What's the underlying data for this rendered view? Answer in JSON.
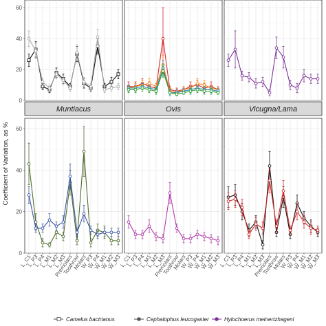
{
  "figure": {
    "ylabel": "Coefficient of Variation, as %",
    "ylim": [
      0,
      65
    ],
    "yticks": [
      0,
      20,
      40,
      60
    ],
    "variables": [
      "LC1",
      "LP3",
      "LP4",
      "LM1",
      "LM2",
      "LM3",
      "Premolars",
      "Toothrow",
      "Molars",
      "WP3",
      "WP4",
      "WM1",
      "WM2",
      "WM3"
    ],
    "x_tick_labels": [
      "L_C1",
      "L_P3",
      "L_P4",
      "L_M1",
      "L_M2",
      "L_M3",
      "Premolars",
      "Toothrow",
      "Molars",
      "W_P3",
      "W_P4",
      "W_M1",
      "W_M2",
      "W_M3"
    ]
  },
  "legend": {
    "items": [
      {
        "label": "Camelus bactrianus",
        "color": "#555555",
        "marker": "square"
      },
      {
        "label": "Cephalophus leucogaster",
        "color": "#555555",
        "marker": "circle"
      },
      {
        "label": "Hylochoerus meinertzhageni",
        "color": "#7b3294",
        "marker": "circle"
      }
    ]
  },
  "chart_data": [
    {
      "type": "line",
      "panel": 1,
      "title": "",
      "series": [
        {
          "name": "Camelus bactrianus",
          "color": "#111111",
          "marker": "square",
          "x": [
            "LC1",
            "LP3",
            "LP4",
            "LM1",
            "LM2",
            "LM3",
            "Premolars",
            "Toothrow",
            "Molars",
            "WP3",
            "WP4",
            "WM1",
            "WM2",
            "WM3"
          ],
          "values": [
            26,
            33,
            9,
            7,
            18,
            14,
            9,
            30,
            11,
            8,
            35,
            9,
            12,
            17
          ],
          "err": [
            4,
            5,
            2,
            2,
            3,
            3,
            2,
            5,
            3,
            2,
            5,
            2,
            3,
            3
          ]
        },
        {
          "color": "#aaaaaa",
          "marker": "circle",
          "x": [
            "LC1",
            "LP3",
            "LP4",
            "LM1",
            "LM2",
            "LM3",
            "Premolars",
            "Toothrow",
            "Molars",
            "WP3",
            "WP4",
            "WM1",
            "WM2",
            "WM3"
          ],
          "values": [
            40,
            32,
            12,
            8,
            17,
            13,
            8,
            31,
            12,
            9,
            41,
            7,
            8,
            9
          ],
          "err": [
            5,
            5,
            2,
            2,
            3,
            3,
            2,
            5,
            3,
            2,
            5,
            2,
            2,
            2
          ]
        }
      ]
    },
    {
      "type": "line",
      "panel": 2,
      "title": "",
      "series": [
        {
          "color": "#d62728",
          "marker": "circle",
          "x": [
            "LC1",
            "LP3",
            "LP4",
            "LM1",
            "LM2",
            "LM3",
            "Premolars",
            "Toothrow",
            "Molars",
            "WP3",
            "WP4",
            "WM1",
            "WM2",
            "WM3"
          ],
          "values": [
            9,
            9,
            11,
            9,
            8,
            40,
            7,
            6,
            7,
            9,
            10,
            8,
            9,
            7
          ],
          "err": [
            3,
            3,
            3,
            3,
            3,
            20,
            2,
            2,
            2,
            3,
            3,
            3,
            3,
            2
          ]
        },
        {
          "color": "#ff7f0e",
          "marker": "circle",
          "x": [
            "LC1",
            "LP3",
            "LP4",
            "LM1",
            "LM2",
            "LM3",
            "Premolars",
            "Toothrow",
            "Molars",
            "WP3",
            "WP4",
            "WM1",
            "WM2",
            "WM3"
          ],
          "values": [
            8,
            9,
            10,
            11,
            9,
            23,
            6,
            5,
            7,
            8,
            11,
            10,
            8,
            7
          ],
          "err": [
            2,
            2,
            3,
            3,
            2,
            6,
            2,
            2,
            2,
            2,
            3,
            3,
            2,
            2
          ]
        },
        {
          "color": "#2c7fb8",
          "marker": "circle",
          "x": [
            "LC1",
            "LP3",
            "LP4",
            "LM1",
            "LM2",
            "LM3",
            "Premolars",
            "Toothrow",
            "Molars",
            "WP3",
            "WP4",
            "WM1",
            "WM2",
            "WM3"
          ],
          "values": [
            8,
            8,
            9,
            8,
            7,
            21,
            5,
            5,
            6,
            7,
            8,
            7,
            7,
            6
          ],
          "err": [
            2,
            2,
            2,
            2,
            2,
            5,
            2,
            2,
            2,
            2,
            2,
            2,
            2,
            2
          ]
        },
        {
          "color": "#2ca02c",
          "marker": "circle",
          "x": [
            "LC1",
            "LP3",
            "LP4",
            "LM1",
            "LM2",
            "LM3",
            "Premolars",
            "Toothrow",
            "Molars",
            "WP3",
            "WP4",
            "WM1",
            "WM2",
            "WM3"
          ],
          "values": [
            7,
            7,
            8,
            7,
            6,
            19,
            5,
            4,
            5,
            6,
            7,
            6,
            6,
            5
          ],
          "err": [
            2,
            2,
            2,
            2,
            2,
            4,
            1,
            1,
            1,
            2,
            2,
            2,
            2,
            1
          ]
        }
      ]
    },
    {
      "type": "line",
      "panel": 3,
      "title": "",
      "series": [
        {
          "name": "Hylochoerus meinertzhageni",
          "color": "#7b3294",
          "marker": "circle",
          "x": [
            "LC1",
            "LP3",
            "LP4",
            "LM1",
            "LM2",
            "LM3",
            "Premolars",
            "Toothrow",
            "Molars",
            "WP3",
            "WP4",
            "WM1",
            "WM2",
            "WM3"
          ],
          "values": [
            26,
            33,
            16,
            15,
            11,
            12,
            5,
            34,
            28,
            10,
            8,
            16,
            14,
            14
          ],
          "err": [
            4,
            12,
            3,
            3,
            3,
            3,
            2,
            7,
            7,
            3,
            3,
            4,
            3,
            3
          ]
        }
      ]
    },
    {
      "type": "line",
      "panel": 4,
      "title": "Muntiacus",
      "series": [
        {
          "color": "#4f6b2a",
          "marker": "circle",
          "x": [
            "LC1",
            "LP3",
            "LP4",
            "LM1",
            "LM2",
            "LM3",
            "Premolars",
            "Toothrow",
            "Molars",
            "WP3",
            "WP4",
            "WM1",
            "WM2",
            "WM3"
          ],
          "values": [
            43,
            15,
            5,
            4,
            10,
            8,
            34,
            6,
            49,
            5,
            11,
            10,
            6,
            6
          ],
          "err": [
            10,
            4,
            2,
            1,
            3,
            2,
            6,
            2,
            12,
            2,
            3,
            3,
            2,
            2
          ]
        },
        {
          "color": "#3a55a0",
          "marker": "circle",
          "x": [
            "LC1",
            "LP3",
            "LP4",
            "LM1",
            "LM2",
            "LM3",
            "Premolars",
            "Toothrow",
            "Molars",
            "WP3",
            "WP4",
            "WM1",
            "WM2",
            "WM3"
          ],
          "values": [
            28,
            12,
            12,
            16,
            13,
            15,
            37,
            10,
            19,
            11,
            9,
            10,
            10,
            10
          ],
          "err": [
            4,
            2,
            2,
            3,
            2,
            3,
            6,
            2,
            4,
            2,
            2,
            2,
            2,
            2
          ]
        }
      ]
    },
    {
      "type": "line",
      "panel": 5,
      "title": "Ovis",
      "series": [
        {
          "color": "#b03aa8",
          "marker": "circle",
          "x": [
            "LC1",
            "LP3",
            "LP4",
            "LM1",
            "LM2",
            "LM3",
            "Premolars",
            "Toothrow",
            "Molars",
            "WP3",
            "WP4",
            "WM1",
            "WM2",
            "WM3"
          ],
          "values": [
            15,
            9,
            9,
            13,
            8,
            7,
            29,
            12,
            7,
            7,
            9,
            8,
            7,
            6
          ],
          "err": [
            3,
            2,
            2,
            3,
            2,
            2,
            5,
            2,
            2,
            2,
            2,
            2,
            2,
            2
          ]
        }
      ]
    },
    {
      "type": "line",
      "panel": 6,
      "title": "Vicugna/Lama",
      "series": [
        {
          "color": "#111111",
          "marker": "circle",
          "x": [
            "LC1",
            "LP3",
            "LP4",
            "LM1",
            "LM2",
            "LM3",
            "Premolars",
            "Toothrow",
            "Molars",
            "WP3",
            "WP4",
            "WM1",
            "WM2",
            "WM3"
          ],
          "values": [
            27,
            28,
            20,
            11,
            15,
            4,
            42,
            10,
            27,
            9,
            24,
            17,
            13,
            10
          ],
          "err": [
            5,
            5,
            4,
            3,
            3,
            2,
            7,
            2,
            5,
            2,
            4,
            3,
            3,
            2
          ]
        },
        {
          "color": "#d62728",
          "marker": "circle",
          "x": [
            "LC1",
            "LP3",
            "LP4",
            "LM1",
            "LM2",
            "LM3",
            "Premolars",
            "Toothrow",
            "Molars",
            "WP3",
            "WP4",
            "WM1",
            "WM2",
            "WM3"
          ],
          "values": [
            25,
            26,
            22,
            9,
            14,
            12,
            35,
            13,
            30,
            11,
            20,
            15,
            12,
            11
          ],
          "err": [
            4,
            4,
            4,
            2,
            3,
            3,
            6,
            3,
            5,
            2,
            4,
            3,
            3,
            2
          ]
        }
      ]
    }
  ]
}
